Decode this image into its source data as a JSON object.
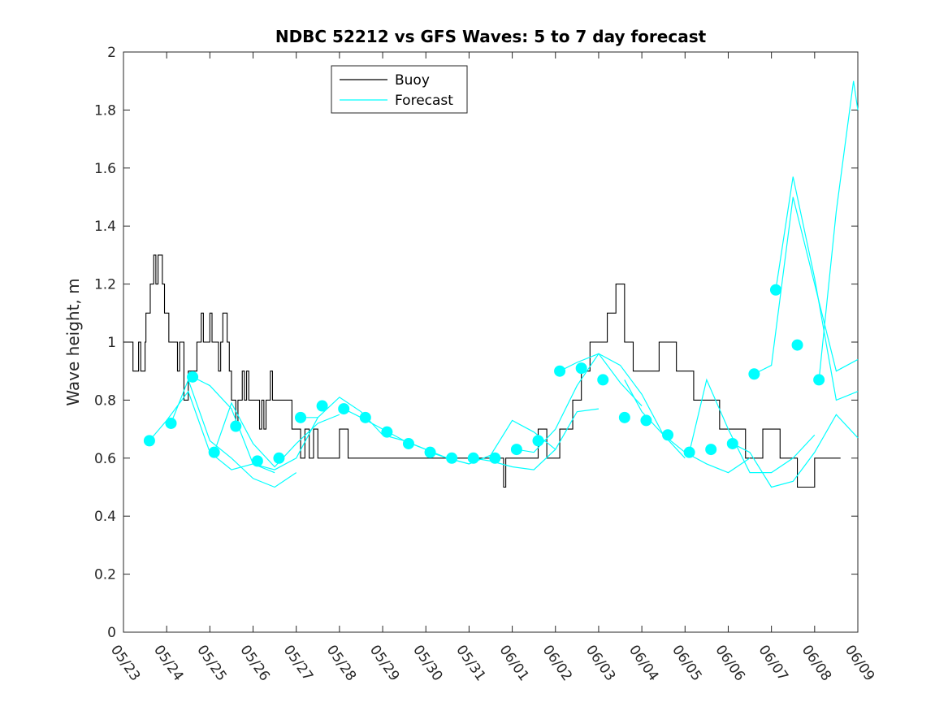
{
  "chart_data": {
    "type": "line",
    "title": "NDBC 52212 vs GFS Waves: 5 to 7 day forecast",
    "xlabel": "",
    "ylabel": "Wave height, m",
    "x_range": [
      "05/23",
      "06/09"
    ],
    "ylim": [
      0,
      2
    ],
    "y_ticks": [
      "0",
      "0.2",
      "0.4",
      "0.6",
      "0.8",
      "1",
      "1.2",
      "1.4",
      "1.6",
      "1.8",
      "2"
    ],
    "x_ticks": [
      "05/23",
      "05/24",
      "05/25",
      "05/26",
      "05/27",
      "05/28",
      "05/29",
      "05/30",
      "05/31",
      "06/01",
      "06/02",
      "06/03",
      "06/04",
      "06/05",
      "06/06",
      "06/07",
      "06/08",
      "06/09"
    ],
    "grid": false,
    "legend": {
      "position": "top-center",
      "entries": [
        "Buoy",
        "Forecast"
      ]
    },
    "colors": {
      "buoy": "#000000",
      "forecast": "#00ffff",
      "markers": "#00ffff"
    },
    "series": [
      {
        "name": "Buoy",
        "x_days": [
          0,
          0.2,
          0.22,
          0.35,
          0.4,
          0.45,
          0.5,
          0.52,
          0.6,
          0.62,
          0.65,
          0.68,
          0.7,
          0.75,
          0.8,
          0.85,
          0.9,
          0.95,
          1.0,
          1.05,
          1.1,
          1.15,
          1.2,
          1.25,
          1.3,
          1.4,
          1.5,
          1.6,
          1.7,
          1.8,
          1.85,
          2.0,
          2.05,
          2.15,
          2.2,
          2.25,
          2.3,
          2.35,
          2.4,
          2.45,
          2.5,
          2.55,
          2.6,
          2.65,
          2.7,
          2.75,
          2.8,
          2.85,
          2.9,
          3.0,
          3.1,
          3.15,
          3.2,
          3.25,
          3.3,
          3.4,
          3.45,
          3.5,
          3.55,
          3.6,
          3.7,
          3.8,
          3.9,
          4.0,
          4.1,
          4.2,
          4.3,
          4.4,
          4.5,
          4.6,
          4.8,
          5.0,
          5.2,
          5.4,
          5.6,
          5.8,
          6.0,
          6.2,
          6.4,
          6.6,
          6.8,
          7.0,
          7.2,
          7.4,
          7.6,
          7.8,
          8.0,
          8.2,
          8.4,
          8.6,
          8.75,
          8.8,
          8.85,
          9.0,
          9.2,
          9.4,
          9.6,
          9.8,
          9.9,
          10.0,
          10.1,
          10.2,
          10.3,
          10.4,
          10.5,
          10.6,
          10.7,
          10.8,
          10.9,
          11.0,
          11.2,
          11.4,
          11.6,
          11.8,
          12.0,
          12.2,
          12.4,
          12.6,
          12.8,
          13.0,
          13.2,
          13.4,
          13.6,
          13.8,
          13.9,
          14.0,
          14.2,
          14.4,
          14.6,
          14.8,
          15.0,
          15.2,
          15.4,
          15.6,
          15.8,
          16.0,
          16.2,
          16.4,
          16.6
        ],
        "y": [
          1.0,
          1.0,
          0.9,
          1.0,
          0.9,
          0.9,
          1.0,
          1.1,
          1.1,
          1.2,
          1.2,
          1.2,
          1.3,
          1.2,
          1.3,
          1.3,
          1.2,
          1.1,
          1.1,
          1.0,
          1.0,
          1.0,
          1.0,
          0.9,
          1.0,
          0.8,
          0.9,
          0.9,
          1.0,
          1.1,
          1.0,
          1.1,
          1.0,
          1.0,
          0.9,
          1.0,
          1.1,
          1.1,
          1.0,
          0.9,
          0.8,
          0.8,
          0.7,
          0.8,
          0.8,
          0.9,
          0.8,
          0.9,
          0.8,
          0.8,
          0.8,
          0.7,
          0.8,
          0.7,
          0.8,
          0.9,
          0.8,
          0.8,
          0.8,
          0.8,
          0.8,
          0.8,
          0.7,
          0.7,
          0.6,
          0.7,
          0.6,
          0.7,
          0.6,
          0.6,
          0.6,
          0.7,
          0.6,
          0.6,
          0.6,
          0.6,
          0.6,
          0.6,
          0.6,
          0.6,
          0.6,
          0.6,
          0.6,
          0.6,
          0.6,
          0.6,
          0.6,
          0.6,
          0.6,
          0.6,
          0.6,
          0.5,
          0.6,
          0.6,
          0.6,
          0.6,
          0.7,
          0.6,
          0.6,
          0.6,
          0.7,
          0.7,
          0.7,
          0.8,
          0.8,
          0.9,
          0.9,
          1.0,
          1.0,
          1.0,
          1.1,
          1.2,
          1.0,
          0.9,
          0.9,
          0.9,
          1.0,
          1.0,
          0.9,
          0.9,
          0.8,
          0.8,
          0.8,
          0.7,
          0.7,
          0.7,
          0.7,
          0.6,
          0.6,
          0.7,
          0.7,
          0.6,
          0.6,
          0.5,
          0.5,
          0.6,
          0.6,
          0.6,
          0.6
        ]
      }
    ],
    "forecast_lines": [
      {
        "x_days": [
          0.6,
          1.0,
          1.5,
          2.0,
          2.5,
          3.0,
          3.5
        ],
        "y": [
          0.66,
          0.73,
          0.83,
          0.62,
          0.56,
          0.58,
          0.55
        ]
      },
      {
        "x_days": [
          1.1,
          1.5,
          2.0,
          2.5,
          3.0,
          3.5,
          4.0
        ],
        "y": [
          0.72,
          0.87,
          0.66,
          0.6,
          0.53,
          0.5,
          0.55
        ]
      },
      {
        "x_days": [
          1.6,
          2.0,
          2.5,
          3.0,
          3.5,
          4.0,
          4.5
        ],
        "y": [
          0.88,
          0.85,
          0.77,
          0.58,
          0.56,
          0.6,
          0.74
        ]
      },
      {
        "x_days": [
          2.1,
          2.5,
          3.0,
          3.5,
          4.0,
          4.5,
          5.0
        ],
        "y": [
          0.62,
          0.79,
          0.65,
          0.57,
          0.65,
          0.72,
          0.75
        ]
      },
      {
        "x_days": [
          4.1,
          4.5,
          5.0,
          5.5,
          6.0,
          6.5,
          7.0
        ],
        "y": [
          0.74,
          0.74,
          0.81,
          0.76,
          0.68,
          0.66,
          0.63
        ]
      },
      {
        "x_days": [
          5.1,
          5.5,
          6.0,
          6.5,
          7.0,
          7.5,
          8.0
        ],
        "y": [
          0.77,
          0.74,
          0.7,
          0.66,
          0.63,
          0.6,
          0.58
        ]
      },
      {
        "x_days": [
          7.1,
          7.5,
          8.0,
          8.5,
          9.0,
          9.5,
          10.0
        ],
        "y": [
          0.62,
          0.6,
          0.58,
          0.61,
          0.73,
          0.69,
          0.63
        ]
      },
      {
        "x_days": [
          8.1,
          8.5,
          9.0,
          9.5,
          10.0,
          10.5,
          11.0
        ],
        "y": [
          0.6,
          0.59,
          0.57,
          0.56,
          0.63,
          0.76,
          0.77
        ]
      },
      {
        "x_days": [
          9.1,
          9.5,
          10.0,
          10.5,
          11.0,
          11.5,
          12.0
        ],
        "y": [
          0.63,
          0.62,
          0.7,
          0.85,
          0.96,
          0.86,
          0.78
        ]
      },
      {
        "x_days": [
          10.1,
          10.5,
          11.0,
          11.5,
          12.0,
          12.5,
          13.0
        ],
        "y": [
          0.9,
          0.93,
          0.96,
          0.92,
          0.82,
          0.68,
          0.6
        ]
      },
      {
        "x_days": [
          11.6,
          12.0,
          12.5,
          13.0,
          13.5,
          14.0,
          14.5
        ],
        "y": [
          0.87,
          0.76,
          0.68,
          0.62,
          0.58,
          0.55,
          0.6
        ]
      },
      {
        "x_days": [
          13.1,
          13.5,
          14.0,
          14.5,
          15.0,
          15.5,
          16.0
        ],
        "y": [
          0.62,
          0.87,
          0.7,
          0.55,
          0.55,
          0.6,
          0.68
        ]
      },
      {
        "x_days": [
          14.1,
          14.5,
          15.0,
          15.5,
          16.0,
          16.5,
          17.0
        ],
        "y": [
          0.65,
          0.62,
          0.5,
          0.52,
          0.62,
          0.75,
          0.67
        ]
      },
      {
        "x_days": [
          14.6,
          15.0,
          15.5,
          16.0,
          16.5,
          17.0
        ],
        "y": [
          0.89,
          0.92,
          1.5,
          1.2,
          0.9,
          0.94
        ]
      },
      {
        "x_days": [
          15.1,
          15.5,
          16.0,
          16.5,
          17.0
        ],
        "y": [
          1.18,
          1.57,
          1.22,
          0.8,
          0.83
        ]
      },
      {
        "x_days": [
          16.1,
          16.5,
          16.9,
          17.0
        ],
        "y": [
          0.87,
          1.45,
          1.9,
          1.8
        ]
      }
    ],
    "forecast_markers": {
      "x_days": [
        0.6,
        1.1,
        1.6,
        2.1,
        2.6,
        3.1,
        3.6,
        4.1,
        4.6,
        5.1,
        5.6,
        6.1,
        6.6,
        7.1,
        7.6,
        8.1,
        8.6,
        9.1,
        9.6,
        10.1,
        10.6,
        11.1,
        11.6,
        12.1,
        12.6,
        13.1,
        13.6,
        14.1,
        14.6,
        15.1,
        15.6,
        16.1
      ],
      "y": [
        0.66,
        0.72,
        0.88,
        0.62,
        0.71,
        0.59,
        0.6,
        0.74,
        0.78,
        0.77,
        0.74,
        0.69,
        0.65,
        0.62,
        0.6,
        0.6,
        0.6,
        0.63,
        0.66,
        0.9,
        0.91,
        0.87,
        0.74,
        0.73,
        0.68,
        0.62,
        0.63,
        0.65,
        0.89,
        1.18,
        0.99,
        0.87
      ]
    }
  }
}
